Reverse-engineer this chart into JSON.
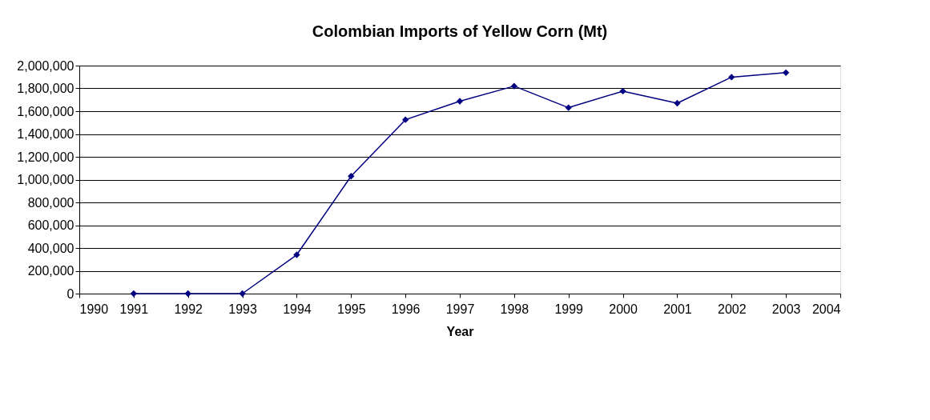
{
  "chart_data": {
    "type": "line",
    "title": "Colombian Imports of Yellow Corn (Mt)",
    "xlabel": "Year",
    "x": [
      1991,
      1992,
      1993,
      1994,
      1995,
      1996,
      1997,
      1998,
      1999,
      2000,
      2001,
      2002,
      2003
    ],
    "series": [
      {
        "color": "#000080",
        "values": [
          0,
          0,
          0,
          340000,
          1030000,
          1525000,
          1688000,
          1820000,
          1631000,
          1776000,
          1670000,
          1899000,
          1938000
        ]
      }
    ],
    "xlim": [
      1990,
      2004
    ],
    "xticks": [
      1990,
      1991,
      1992,
      1993,
      1994,
      1995,
      1996,
      1997,
      1998,
      1999,
      2000,
      2001,
      2002,
      2003,
      2004
    ],
    "ylim": [
      0,
      2000000
    ],
    "yticks": [
      {
        "value": 0,
        "label": "0"
      },
      {
        "value": 200000,
        "label": "200,000"
      },
      {
        "value": 400000,
        "label": "400,000"
      },
      {
        "value": 600000,
        "label": "600,000"
      },
      {
        "value": 800000,
        "label": "800,000"
      },
      {
        "value": 1000000,
        "label": "1,000,000"
      },
      {
        "value": 1200000,
        "label": "1,200,000"
      },
      {
        "value": 1400000,
        "label": "1,400,000"
      },
      {
        "value": 1600000,
        "label": "1,600,000"
      },
      {
        "value": 1800000,
        "label": "1,800,000"
      },
      {
        "value": 2000000,
        "label": "2,000,000"
      }
    ],
    "grid": "y",
    "marker": "diamond",
    "line_style": "solid"
  }
}
